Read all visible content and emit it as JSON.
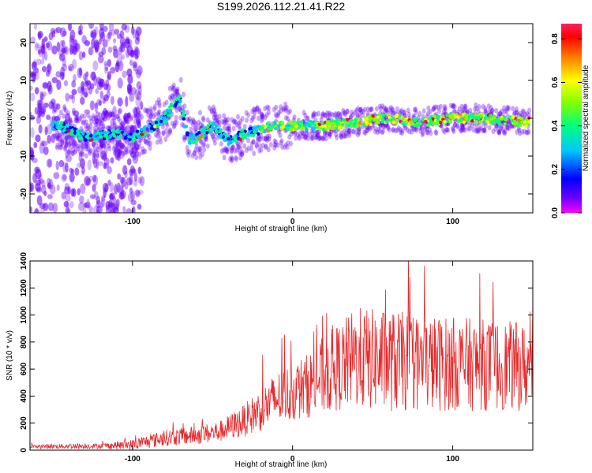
{
  "title": "S199.2026.112.21.41.R22",
  "chart_data": [
    {
      "type": "heatmap",
      "title": "S199.2026.112.21.41.R22",
      "xlabel": "Height of straight line (km)",
      "ylabel": "Frequency (Hz)",
      "xlim": [
        -164,
        150
      ],
      "ylim": [
        -25,
        25
      ],
      "xticks": [
        -100,
        0,
        100
      ],
      "yticks": [
        -20,
        -10,
        0,
        10,
        20
      ],
      "grid": false,
      "colorbar": {
        "label": "Normalized spectral amplitude",
        "range": [
          0.0,
          0.87
        ],
        "ticks": [
          0.0,
          0.2,
          0.4,
          0.6,
          0.8
        ],
        "colors": [
          "#ff00ff",
          "#6a00ff",
          "#0000ff",
          "#00c8ff",
          "#00ff80",
          "#80ff00",
          "#ffff00",
          "#ff8000",
          "#ff0000",
          "#ff0060"
        ]
      },
      "ridge": {
        "description": "dominant frequency trace",
        "x": [
          -145,
          -130,
          -110,
          -100,
          -90,
          -80,
          -75,
          -70,
          -65,
          -60,
          -50,
          -40,
          -30,
          -20,
          -10,
          0,
          20,
          40,
          60,
          80,
          100,
          120,
          145
        ],
        "y": [
          -2,
          -5,
          -4,
          -5,
          -3,
          0,
          3,
          5,
          -6,
          -5,
          -2,
          -6,
          -4,
          -3,
          -2,
          -2,
          -2,
          -1,
          0,
          -1,
          0,
          0,
          -1
        ]
      }
    },
    {
      "type": "line",
      "xlabel": "Height of straight line (km)",
      "ylabel": "SNR (10 * v/v)",
      "xlim": [
        -164,
        150
      ],
      "ylim": [
        0,
        1400
      ],
      "xticks": [
        -100,
        0,
        100
      ],
      "yticks": [
        0,
        200,
        400,
        600,
        800,
        1000,
        1200,
        1400
      ],
      "grid": false,
      "series": [
        {
          "name": "SNR",
          "color": "#e8282a",
          "envelope_x": [
            -164,
            -140,
            -120,
            -100,
            -80,
            -60,
            -45,
            -30,
            -20,
            -10,
            0,
            10,
            20,
            30,
            40,
            60,
            80,
            100,
            120,
            140,
            150
          ],
          "envelope_mean": [
            25,
            30,
            30,
            40,
            90,
            110,
            140,
            220,
            300,
            380,
            430,
            480,
            560,
            620,
            680,
            660,
            640,
            640,
            630,
            620,
            600
          ],
          "envelope_amp": [
            15,
            20,
            20,
            40,
            60,
            70,
            80,
            120,
            160,
            200,
            220,
            240,
            300,
            330,
            380,
            380,
            360,
            350,
            340,
            330,
            320
          ],
          "max_value": 1420
        }
      ]
    }
  ]
}
